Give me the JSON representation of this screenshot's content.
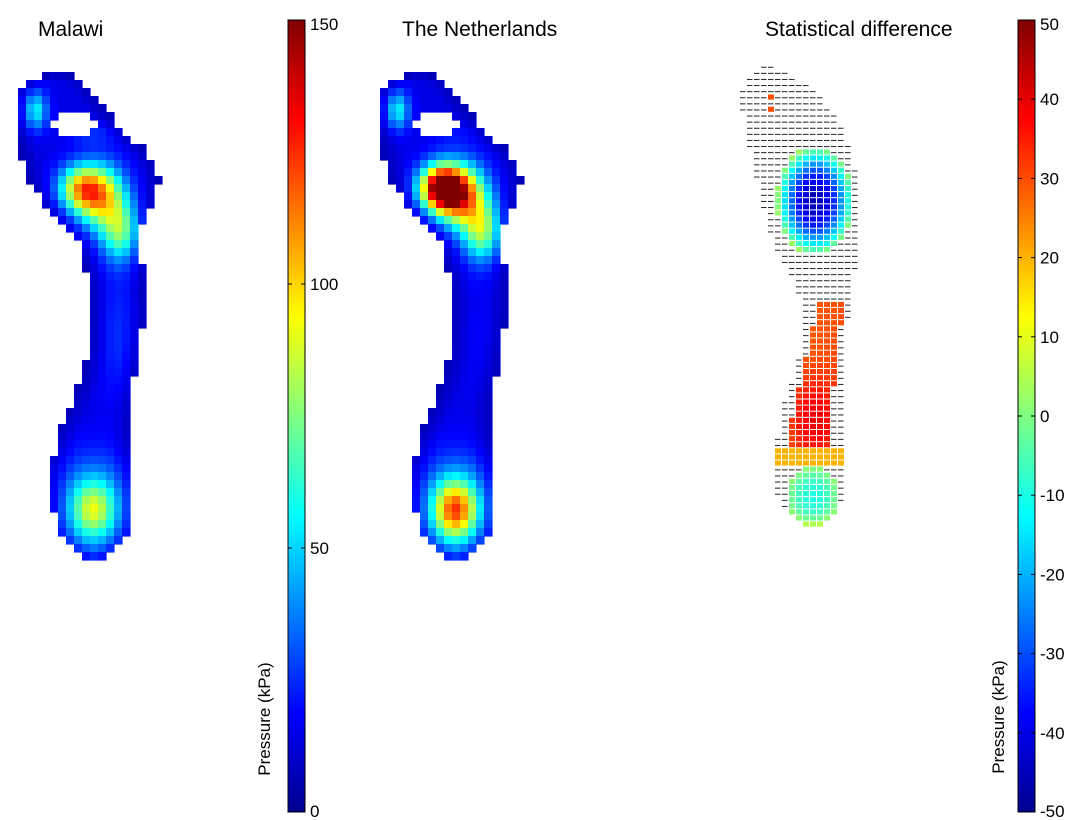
{
  "chart_data": [
    {
      "type": "heatmap",
      "title": "Malawi",
      "colorbar": "pressure",
      "region": "plantar foot pressure map (right foot)",
      "regional_values_kPa": {
        "hallux": 55,
        "lesser_toes": 20,
        "forefoot_medial": 80,
        "forefoot_central": 98,
        "forefoot_lateral": 70,
        "midfoot": 25,
        "heel_center": 92,
        "heel_edge": 45
      }
    },
    {
      "type": "heatmap",
      "title": "The Netherlands",
      "colorbar": "pressure",
      "region": "plantar foot pressure map (right foot)",
      "regional_values_kPa": {
        "hallux": 55,
        "lesser_toes": 15,
        "forefoot_medial": 150,
        "forefoot_central": 110,
        "forefoot_lateral": 75,
        "midfoot": 18,
        "heel_center": 125,
        "heel_edge": 45
      }
    },
    {
      "type": "heatmap",
      "title": "Statistical difference",
      "colorbar": "difference",
      "region": "significant difference map (non-significant cells shown as dashes)",
      "regional_values_kPa": {
        "toe_spots": 30,
        "forefoot_center": -45,
        "forefoot_edge": 5,
        "midfoot": 33,
        "heel_front_band": 20,
        "heel": -10
      }
    }
  ],
  "colorbars": {
    "pressure": {
      "min": 0,
      "max": 150,
      "ticks": [
        0,
        50,
        100,
        150
      ],
      "label": "Pressure (kPa)",
      "colormap": "jet"
    },
    "difference": {
      "min": -50,
      "max": 50,
      "ticks": [
        -50,
        -40,
        -30,
        -20,
        -10,
        0,
        10,
        20,
        30,
        40,
        50
      ],
      "label": "Pressure (kPa)",
      "colormap": "jet"
    }
  }
}
